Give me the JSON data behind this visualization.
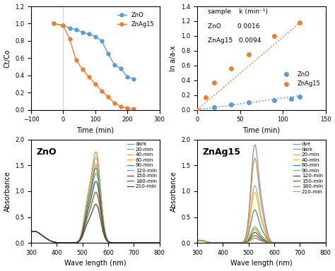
{
  "top_left": {
    "ZnO_x": [
      -30,
      0,
      20,
      40,
      60,
      80,
      100,
      120,
      140,
      160,
      180,
      200,
      220
    ],
    "ZnO_y": [
      1.0,
      0.98,
      0.95,
      0.93,
      0.9,
      0.88,
      0.85,
      0.8,
      0.65,
      0.52,
      0.48,
      0.38,
      0.36
    ],
    "ZnAg15_x": [
      -30,
      0,
      20,
      40,
      60,
      80,
      100,
      120,
      140,
      160,
      180,
      200,
      220
    ],
    "ZnAg15_y": [
      1.0,
      0.98,
      0.82,
      0.58,
      0.47,
      0.38,
      0.3,
      0.22,
      0.15,
      0.08,
      0.04,
      0.02,
      0.01
    ],
    "xlabel": "Time (min)",
    "ylabel": "Ct/Co",
    "xlim": [
      -100,
      300
    ],
    "ylim": [
      0,
      1.2
    ],
    "xticks": [
      -100,
      0,
      100,
      200,
      300
    ],
    "yticks": [
      0,
      0.2,
      0.4,
      0.6,
      0.8,
      1.0,
      1.2
    ],
    "ZnO_color": "#5b9bd5",
    "ZnAg15_color": "#ed7d31"
  },
  "top_right": {
    "ZnO_x": [
      0,
      20,
      40,
      60,
      90,
      110,
      120
    ],
    "ZnO_y": [
      0.0,
      0.03,
      0.07,
      0.1,
      0.13,
      0.15,
      0.18
    ],
    "ZnAg15_x": [
      0,
      10,
      20,
      40,
      60,
      90,
      120
    ],
    "ZnAg15_y": [
      0.0,
      0.17,
      0.37,
      0.56,
      0.75,
      1.0,
      1.18
    ],
    "ZnO_fit_x": [
      0,
      120
    ],
    "ZnO_fit_y": [
      0.0,
      0.192
    ],
    "ZnAg15_fit_x": [
      0,
      120
    ],
    "ZnAg15_fit_y": [
      0.0,
      1.18
    ],
    "xlabel": "Time (min)",
    "ylabel": "ln a/a-x",
    "xlim": [
      0,
      150
    ],
    "ylim": [
      0,
      1.4
    ],
    "xticks": [
      0,
      50,
      100,
      150
    ],
    "yticks": [
      0,
      0.2,
      0.4,
      0.6,
      0.8,
      1.0,
      1.2,
      1.4
    ],
    "ZnO_color": "#5b9bd5",
    "ZnAg15_color": "#ed7d31"
  },
  "bottom_left": {
    "title": "ZnO",
    "xlabel": "Wave length (nm)",
    "ylabel": "Absorbance",
    "xlim": [
      300,
      800
    ],
    "ylim": [
      0,
      2
    ],
    "xticks": [
      300,
      400,
      500,
      600,
      700,
      800
    ],
    "yticks": [
      0,
      0.5,
      1.0,
      1.5,
      2.0
    ],
    "labels": [
      "dark",
      "20-min",
      "40-min",
      "60-min",
      "90-min",
      "120-min",
      "150-min",
      "180-min",
      "210-min"
    ],
    "colors": [
      "#5b9bd5",
      "#ed7d31",
      "#a5a5a5",
      "#ffc000",
      "#4472c4",
      "#70ad47",
      "#264478",
      "#9e480e",
      "#3d3d3d"
    ],
    "peak_wavelength": 554,
    "peak_heights": [
      1.45,
      1.7,
      1.6,
      1.5,
      1.4,
      1.3,
      1.15,
      0.95,
      0.72
    ],
    "shoulder_wavelength": 520,
    "shoulder_heights": [
      0.58,
      0.68,
      0.62,
      0.58,
      0.55,
      0.5,
      0.45,
      0.38,
      0.3
    ],
    "uv_base": 0.22
  },
  "bottom_right": {
    "title": "ZnAg15",
    "xlabel": "Wave length (nm)",
    "ylabel": "Absorbance",
    "xlim": [
      300,
      800
    ],
    "ylim": [
      0,
      2
    ],
    "xticks": [
      300,
      400,
      500,
      600,
      700,
      800
    ],
    "yticks": [
      0,
      0.5,
      1.0,
      1.5,
      2.0
    ],
    "labels": [
      "dye",
      "dark",
      "20-min",
      "40-min",
      "60-min",
      "90-min",
      "120-min",
      "150-min",
      "180-min",
      "210-min"
    ],
    "colors": [
      "#5b9bd5",
      "#ed7d31",
      "#a5a5a5",
      "#ffc000",
      "#4472c4",
      "#70ad47",
      "#264478",
      "#9e480e",
      "#a5a5a5",
      "#ffc000"
    ],
    "peak_wavelength": 524,
    "peak_heights": [
      1.85,
      1.6,
      1.08,
      0.95,
      0.62,
      0.3,
      0.2,
      0.14,
      0.09,
      0.26
    ],
    "shoulder_wavelength": 555,
    "shoulder_heights": [
      0.5,
      0.4,
      0.28,
      0.24,
      0.16,
      0.08,
      0.05,
      0.03,
      0.02,
      0.07
    ],
    "uv_base": 0.05
  }
}
